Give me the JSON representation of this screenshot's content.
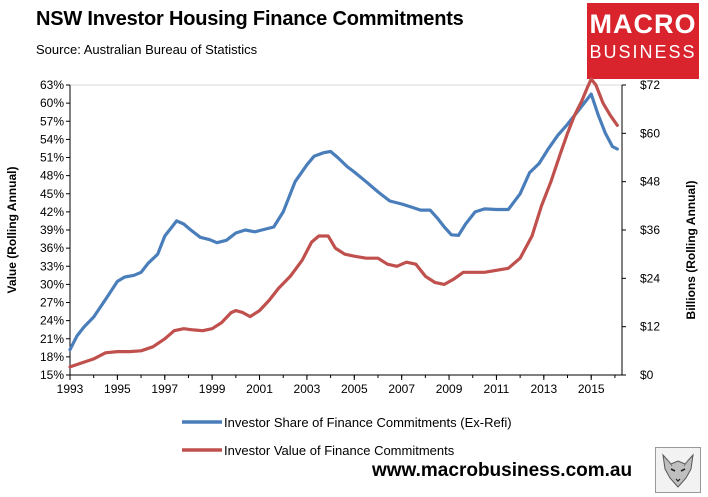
{
  "header": {
    "title": "NSW Investor Housing Finance Commitments",
    "subtitle": "Source: Australian Bureau of Statistics"
  },
  "logo": {
    "line1": "MACRO",
    "line2": "BUSINESS",
    "color": "#d9232d"
  },
  "footer": {
    "website": "www.macrobusiness.com.au",
    "badge_icon": "wolf-icon"
  },
  "chart_data": {
    "type": "line",
    "x_ticks": [
      "1993",
      "1995",
      "1997",
      "1999",
      "2001",
      "2003",
      "2005",
      "2007",
      "2009",
      "2011",
      "2013",
      "2015"
    ],
    "xlim": [
      1993,
      2016.3
    ],
    "y_left": {
      "label": "Value (Rolling Annual)",
      "ticks": [
        "15%",
        "18%",
        "21%",
        "24%",
        "27%",
        "30%",
        "33%",
        "36%",
        "39%",
        "42%",
        "45%",
        "48%",
        "51%",
        "54%",
        "57%",
        "60%",
        "63%"
      ],
      "range": [
        15,
        63
      ]
    },
    "y_right": {
      "label": "Billions (Rolling Annual)",
      "ticks": [
        "$0",
        "$12",
        "$24",
        "$36",
        "$48",
        "$60",
        "$72"
      ],
      "range": [
        0,
        72
      ]
    },
    "grid": false,
    "legend_position": "bottom",
    "series": [
      {
        "name": "Investor Share of Finance Commitments (Ex-Refi)",
        "axis": "left",
        "color": "#4a7ebb",
        "points": [
          [
            1993.0,
            19.2
          ],
          [
            1993.3,
            21.5
          ],
          [
            1993.6,
            23.0
          ],
          [
            1994.0,
            24.6
          ],
          [
            1994.5,
            27.5
          ],
          [
            1995.0,
            30.5
          ],
          [
            1995.3,
            31.2
          ],
          [
            1995.7,
            31.5
          ],
          [
            1996.0,
            32.0
          ],
          [
            1996.3,
            33.5
          ],
          [
            1996.7,
            35.0
          ],
          [
            1997.0,
            38.0
          ],
          [
            1997.3,
            39.5
          ],
          [
            1997.5,
            40.5
          ],
          [
            1997.8,
            40.0
          ],
          [
            1998.1,
            39.0
          ],
          [
            1998.5,
            37.8
          ],
          [
            1998.9,
            37.4
          ],
          [
            1999.2,
            36.9
          ],
          [
            1999.6,
            37.3
          ],
          [
            2000.0,
            38.5
          ],
          [
            2000.4,
            39.0
          ],
          [
            2000.8,
            38.7
          ],
          [
            2001.1,
            39.0
          ],
          [
            2001.6,
            39.5
          ],
          [
            2002.0,
            42.0
          ],
          [
            2002.5,
            47.0
          ],
          [
            2003.0,
            49.8
          ],
          [
            2003.3,
            51.2
          ],
          [
            2003.7,
            51.8
          ],
          [
            2004.0,
            52.0
          ],
          [
            2004.3,
            51.0
          ],
          [
            2004.7,
            49.5
          ],
          [
            2005.0,
            48.6
          ],
          [
            2005.5,
            47.0
          ],
          [
            2006.0,
            45.3
          ],
          [
            2006.5,
            43.8
          ],
          [
            2007.0,
            43.3
          ],
          [
            2007.4,
            42.8
          ],
          [
            2007.8,
            42.3
          ],
          [
            2008.2,
            42.3
          ],
          [
            2008.5,
            41.0
          ],
          [
            2008.8,
            39.5
          ],
          [
            2009.1,
            38.2
          ],
          [
            2009.4,
            38.1
          ],
          [
            2009.7,
            40.0
          ],
          [
            2010.1,
            42.0
          ],
          [
            2010.5,
            42.5
          ],
          [
            2011.0,
            42.4
          ],
          [
            2011.5,
            42.4
          ],
          [
            2012.0,
            45.0
          ],
          [
            2012.4,
            48.5
          ],
          [
            2012.8,
            50.0
          ],
          [
            2013.2,
            52.5
          ],
          [
            2013.6,
            54.7
          ],
          [
            2014.0,
            56.5
          ],
          [
            2014.4,
            58.5
          ],
          [
            2014.8,
            60.5
          ],
          [
            2015.0,
            61.5
          ],
          [
            2015.3,
            58.0
          ],
          [
            2015.6,
            55.0
          ],
          [
            2015.9,
            52.8
          ],
          [
            2016.1,
            52.4
          ]
        ]
      },
      {
        "name": "Investor Value of Finance Commitments",
        "axis": "right",
        "color": "#c0504d",
        "points": [
          [
            1993.0,
            2.0
          ],
          [
            1993.5,
            3.0
          ],
          [
            1994.0,
            4.0
          ],
          [
            1994.5,
            5.5
          ],
          [
            1995.0,
            5.8
          ],
          [
            1995.5,
            5.8
          ],
          [
            1996.0,
            6.0
          ],
          [
            1996.5,
            7.0
          ],
          [
            1997.0,
            9.0
          ],
          [
            1997.4,
            11.0
          ],
          [
            1997.8,
            11.5
          ],
          [
            1998.2,
            11.2
          ],
          [
            1998.6,
            11.0
          ],
          [
            1999.0,
            11.5
          ],
          [
            1999.4,
            13.0
          ],
          [
            1999.8,
            15.5
          ],
          [
            2000.0,
            16.0
          ],
          [
            2000.3,
            15.5
          ],
          [
            2000.6,
            14.5
          ],
          [
            2001.0,
            16.0
          ],
          [
            2001.4,
            18.5
          ],
          [
            2001.8,
            21.5
          ],
          [
            2002.3,
            24.5
          ],
          [
            2002.8,
            28.5
          ],
          [
            2003.2,
            33.0
          ],
          [
            2003.5,
            34.5
          ],
          [
            2003.9,
            34.5
          ],
          [
            2004.2,
            31.5
          ],
          [
            2004.6,
            30.0
          ],
          [
            2005.0,
            29.5
          ],
          [
            2005.5,
            29.0
          ],
          [
            2006.0,
            29.0
          ],
          [
            2006.4,
            27.5
          ],
          [
            2006.8,
            27.0
          ],
          [
            2007.2,
            28.0
          ],
          [
            2007.6,
            27.5
          ],
          [
            2008.0,
            24.5
          ],
          [
            2008.4,
            23.0
          ],
          [
            2008.8,
            22.5
          ],
          [
            2009.2,
            23.8
          ],
          [
            2009.6,
            25.5
          ],
          [
            2010.0,
            25.5
          ],
          [
            2010.5,
            25.5
          ],
          [
            2011.0,
            26.0
          ],
          [
            2011.5,
            26.5
          ],
          [
            2012.0,
            29.0
          ],
          [
            2012.5,
            34.5
          ],
          [
            2012.9,
            42.0
          ],
          [
            2013.3,
            48.0
          ],
          [
            2013.7,
            55.0
          ],
          [
            2014.0,
            60.0
          ],
          [
            2014.3,
            64.5
          ],
          [
            2014.6,
            68.0
          ],
          [
            2014.85,
            71.5
          ],
          [
            2015.0,
            73.5
          ],
          [
            2015.2,
            72.0
          ],
          [
            2015.5,
            67.5
          ],
          [
            2015.8,
            64.5
          ],
          [
            2016.1,
            62.0
          ]
        ]
      }
    ]
  }
}
